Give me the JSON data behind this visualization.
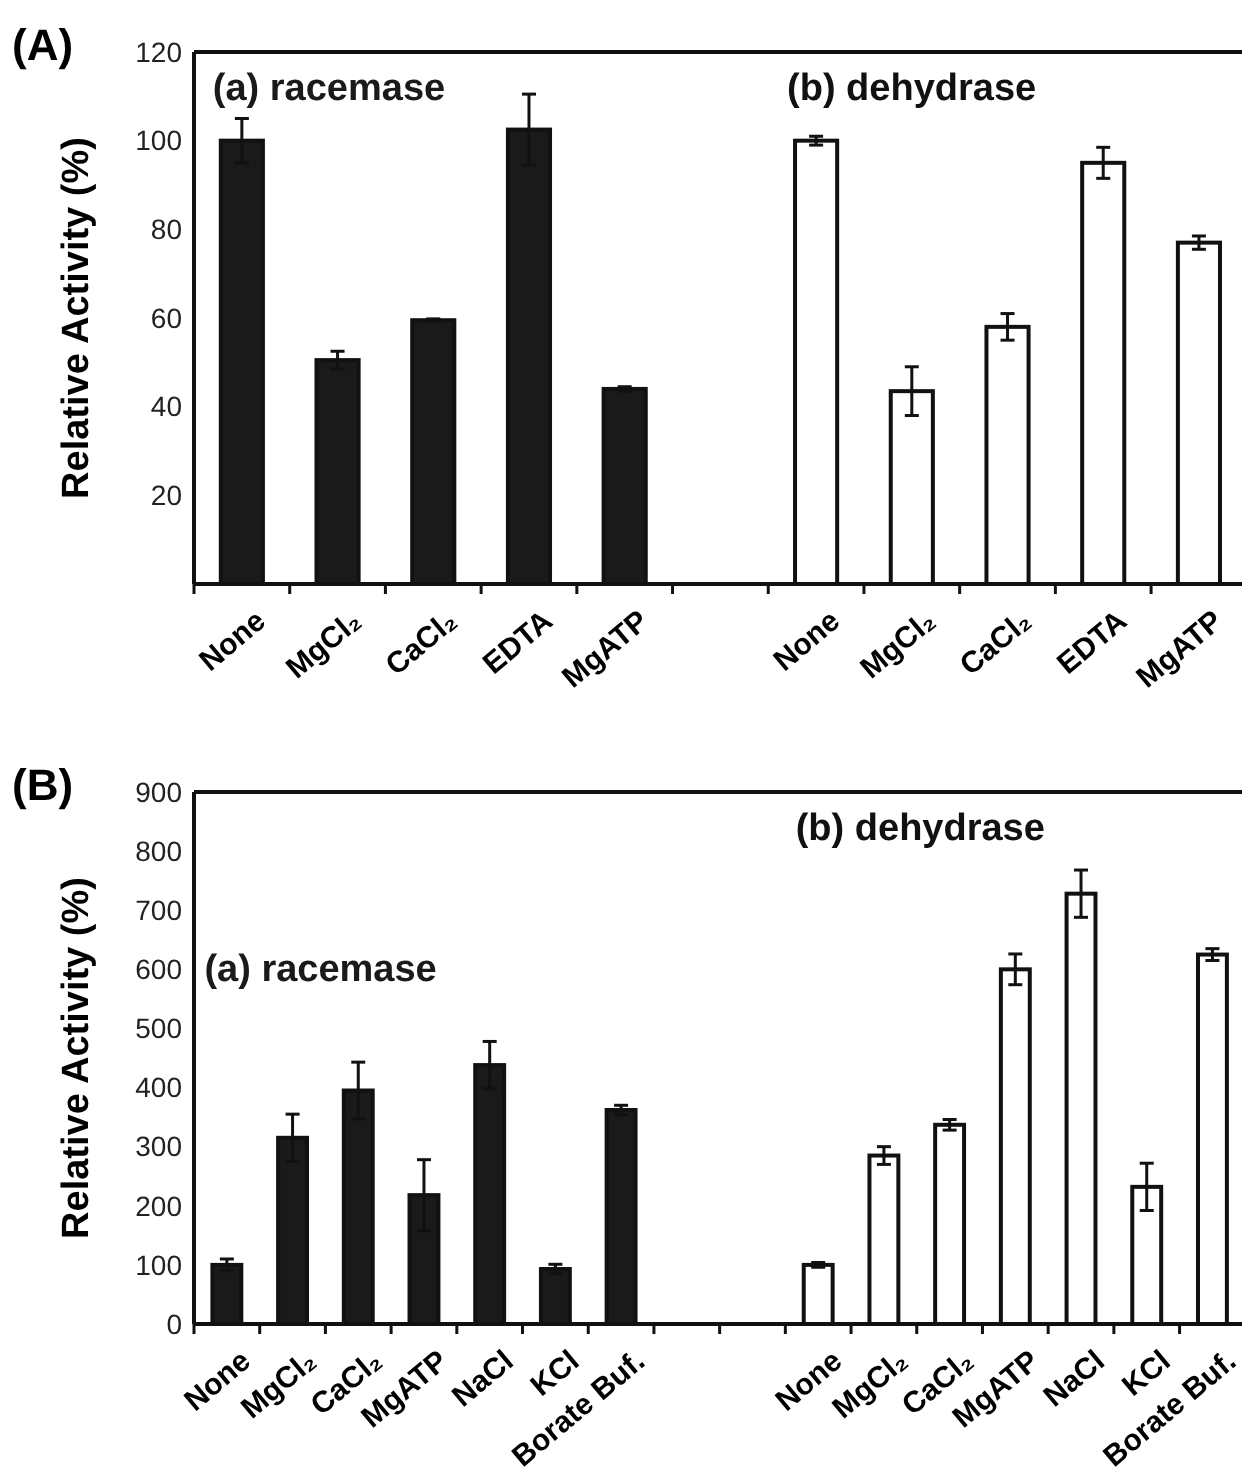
{
  "chart_data": [
    {
      "type": "bar",
      "title": "(A)",
      "ylabel": "Relative Activity (%)",
      "categories": [
        "None",
        "MgCl₂",
        "CaCl₂",
        "EDTA",
        "MgATP",
        null,
        "None",
        "MgCl₂",
        "CaCl₂",
        "EDTA",
        "MgATP"
      ],
      "ylim": [
        0,
        120
      ],
      "yticks": [
        20,
        40,
        60,
        80,
        100,
        120
      ],
      "grid": false,
      "series": [
        {
          "name": "(a) racemase",
          "color": "#1a1a1a",
          "values": [
            100,
            50.5,
            59.5,
            102.5,
            44,
            null,
            null,
            null,
            null,
            null,
            null
          ],
          "errors": [
            5,
            2,
            0.3,
            8,
            0.5,
            null,
            null,
            null,
            null,
            null,
            null
          ]
        },
        {
          "name": "(b) dehydrase",
          "color": "#ffffff",
          "values": [
            null,
            null,
            null,
            null,
            null,
            null,
            100,
            43.5,
            58,
            95,
            77
          ],
          "errors": [
            null,
            null,
            null,
            null,
            null,
            null,
            1,
            5.5,
            3,
            3.5,
            1.5
          ]
        }
      ]
    },
    {
      "type": "bar",
      "title": "(B)",
      "ylabel": "Relative Activity (%)",
      "categories": [
        "None",
        "MgCl₂",
        "CaCl₂",
        "MgATP",
        "NaCl",
        "KCl",
        "Borate Buf.",
        null,
        null,
        "None",
        "MgCl₂",
        "CaCl₂",
        "MgATP",
        "NaCl",
        "KCl",
        "Borate Buf."
      ],
      "ylim": [
        0,
        900
      ],
      "yticks": [
        0,
        100,
        200,
        300,
        400,
        500,
        600,
        700,
        800,
        900
      ],
      "grid": false,
      "series": [
        {
          "name": "(a) racemase",
          "color": "#1a1a1a",
          "values": [
            100,
            315,
            395,
            218,
            438,
            93,
            362,
            null,
            null,
            null,
            null,
            null,
            null,
            null,
            null,
            null
          ],
          "errors": [
            10,
            40,
            48,
            60,
            40,
            8,
            8,
            null,
            null,
            null,
            null,
            null,
            null,
            null,
            null,
            null
          ]
        },
        {
          "name": "(b) dehydrase",
          "color": "#ffffff",
          "values": [
            null,
            null,
            null,
            null,
            null,
            null,
            null,
            null,
            0,
            100,
            285,
            337,
            600,
            728,
            232,
            625
          ],
          "errors": [
            null,
            null,
            null,
            null,
            null,
            null,
            null,
            null,
            null,
            4,
            15,
            9,
            26,
            40,
            40,
            10
          ]
        }
      ]
    }
  ]
}
